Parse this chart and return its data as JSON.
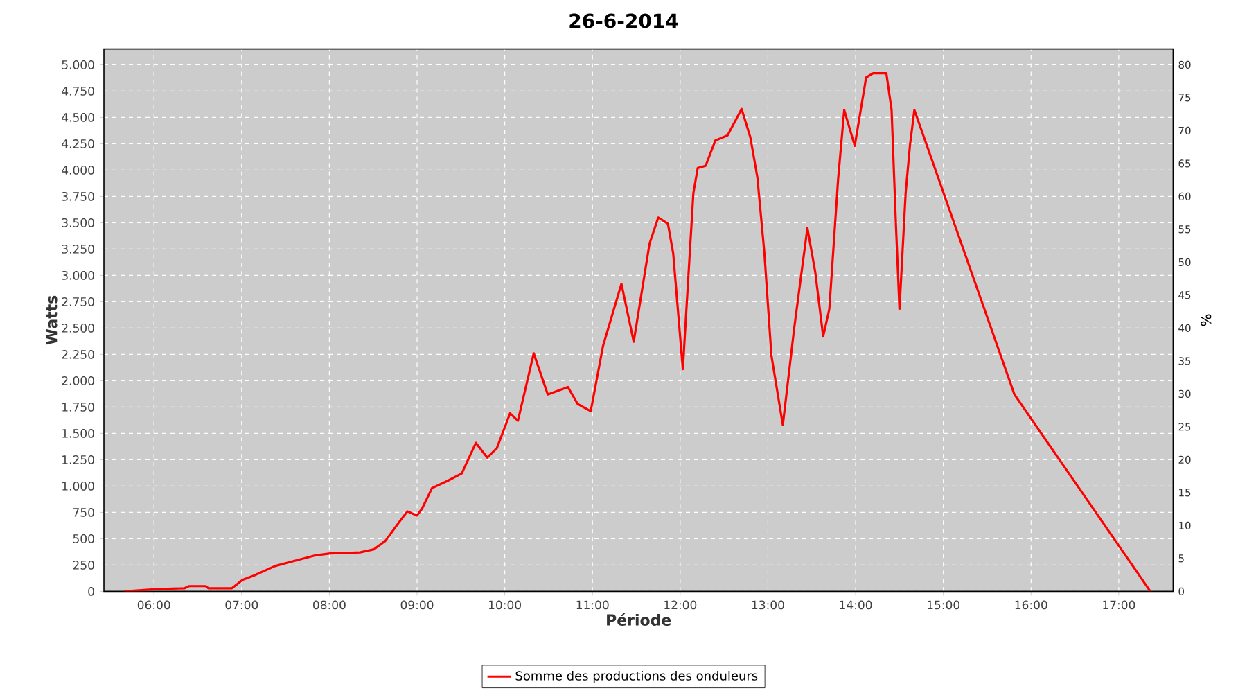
{
  "chart_data": {
    "type": "line",
    "title": "26-6-2014",
    "xlabel": "Période",
    "ylabel": "Watts",
    "y2label": "%",
    "xlim": [
      5.43,
      17.62
    ],
    "ylim": [
      0,
      5150
    ],
    "y2lim": [
      0,
      82.4
    ],
    "xticks": [
      {
        "value": 6,
        "label": "06:00"
      },
      {
        "value": 7,
        "label": "07:00"
      },
      {
        "value": 8,
        "label": "08:00"
      },
      {
        "value": 9,
        "label": "09:00"
      },
      {
        "value": 10,
        "label": "10:00"
      },
      {
        "value": 11,
        "label": "11:00"
      },
      {
        "value": 12,
        "label": "12:00"
      },
      {
        "value": 13,
        "label": "13:00"
      },
      {
        "value": 14,
        "label": "14:00"
      },
      {
        "value": 15,
        "label": "15:00"
      },
      {
        "value": 16,
        "label": "16:00"
      },
      {
        "value": 17,
        "label": "17:00"
      }
    ],
    "yticks": [
      0,
      250,
      500,
      750,
      {
        "value": 1000,
        "label": "1.000"
      },
      {
        "value": 1250,
        "label": "1.250"
      },
      {
        "value": 1500,
        "label": "1.500"
      },
      {
        "value": 1750,
        "label": "1.750"
      },
      {
        "value": 2000,
        "label": "2.000"
      },
      {
        "value": 2250,
        "label": "2.250"
      },
      {
        "value": 2500,
        "label": "2.500"
      },
      {
        "value": 2750,
        "label": "2.750"
      },
      {
        "value": 3000,
        "label": "3.000"
      },
      {
        "value": 3250,
        "label": "3.250"
      },
      {
        "value": 3500,
        "label": "3.500"
      },
      {
        "value": 3750,
        "label": "3.750"
      },
      {
        "value": 4000,
        "label": "4.000"
      },
      {
        "value": 4250,
        "label": "4.250"
      },
      {
        "value": 4500,
        "label": "4.500"
      },
      {
        "value": 4750,
        "label": "4.750"
      },
      {
        "value": 5000,
        "label": "5.000"
      }
    ],
    "y2ticks": [
      0,
      5,
      10,
      15,
      20,
      25,
      30,
      35,
      40,
      45,
      50,
      55,
      60,
      65,
      70,
      75,
      80
    ],
    "grid": true,
    "legend": "bottom",
    "line_style": "solid",
    "series": [
      {
        "name": "Somme des productions des onduleurs",
        "color": "#ff0000",
        "x": [
          5.66,
          6.0,
          6.35,
          6.4,
          6.59,
          6.62,
          6.89,
          7.01,
          7.14,
          7.38,
          7.56,
          7.83,
          8.01,
          8.35,
          8.51,
          8.64,
          8.78,
          8.89,
          9.0,
          9.06,
          9.17,
          9.35,
          9.51,
          9.67,
          9.8,
          9.91,
          10.06,
          10.15,
          10.33,
          10.49,
          10.72,
          10.83,
          10.98,
          11.12,
          11.33,
          11.47,
          11.65,
          11.75,
          11.86,
          11.92,
          12.03,
          12.15,
          12.2,
          12.29,
          12.4,
          12.54,
          12.7,
          12.8,
          12.88,
          12.96,
          13.04,
          13.17,
          13.3,
          13.45,
          13.54,
          13.63,
          13.7,
          13.8,
          13.87,
          13.99,
          14.12,
          14.2,
          14.35,
          14.41,
          14.46,
          14.5,
          14.57,
          14.62,
          14.67,
          15.81,
          17.36
        ],
        "values": [
          0,
          20,
          30,
          50,
          50,
          30,
          30,
          110,
          150,
          240,
          280,
          340,
          360,
          370,
          400,
          480,
          640,
          760,
          720,
          790,
          980,
          1050,
          1120,
          1410,
          1270,
          1360,
          1690,
          1620,
          2260,
          1870,
          1940,
          1780,
          1710,
          2330,
          2920,
          2370,
          3300,
          3550,
          3490,
          3210,
          2110,
          3780,
          4020,
          4040,
          4280,
          4330,
          4580,
          4310,
          3930,
          3210,
          2240,
          1580,
          2500,
          3450,
          3030,
          2420,
          2680,
          3910,
          4570,
          4230,
          4880,
          4920,
          4920,
          4570,
          3470,
          2680,
          3780,
          4240,
          4570,
          1870,
          0
        ]
      }
    ]
  }
}
